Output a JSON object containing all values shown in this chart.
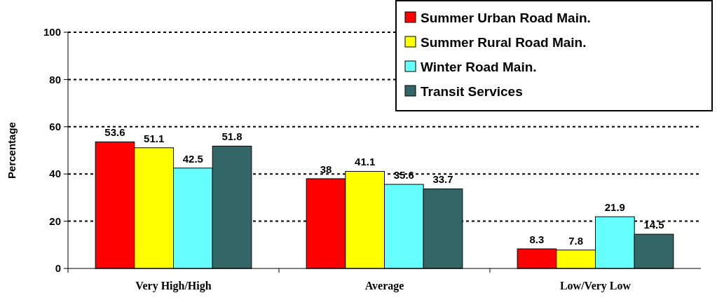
{
  "chart_data": {
    "type": "bar",
    "ylabel": "Percentage",
    "categories": [
      "Very High/High",
      "Average",
      "Low/Very Low"
    ],
    "series": [
      {
        "name": "Summer Urban Road Main.",
        "color": "#ff0000",
        "values": [
          53.6,
          38,
          8.3
        ]
      },
      {
        "name": "Summer Rural Road Main.",
        "color": "#ffff00",
        "values": [
          51.1,
          41.1,
          7.8
        ]
      },
      {
        "name": "Winter Road Main.",
        "color": "#66ffff",
        "values": [
          42.5,
          35.6,
          21.9
        ]
      },
      {
        "name": "Transit Services",
        "color": "#336666",
        "values": [
          51.8,
          33.7,
          14.5
        ]
      }
    ],
    "ylim": [
      0,
      100
    ],
    "yticks": [
      0,
      20,
      40,
      60,
      80,
      100
    ],
    "grid": "y",
    "legend": "top right",
    "data_labels": true
  }
}
